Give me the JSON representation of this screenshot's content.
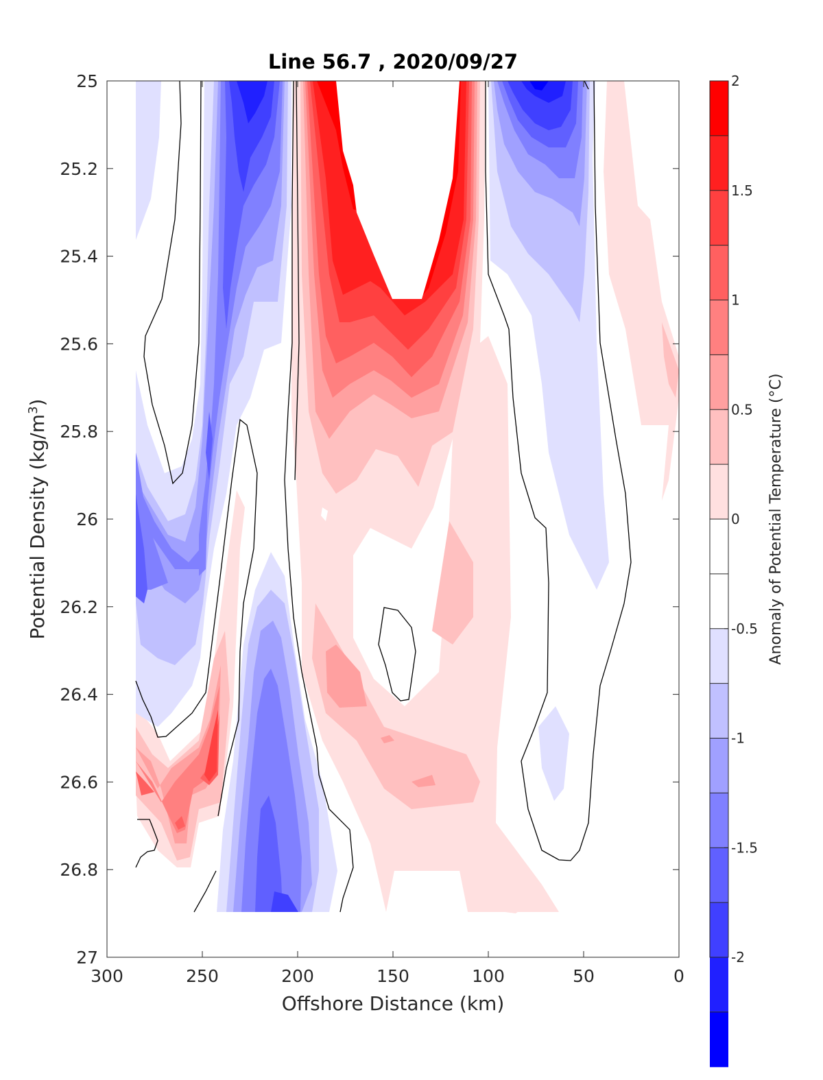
{
  "chart_data": {
    "type": "heatmap",
    "title": "Line 56.7 , 2020/09/27",
    "xlabel": "Offshore Distance (km)",
    "ylabel_main": "Potential Density (kg/m",
    "ylabel_sup": "3",
    "ylabel_end": ")",
    "xlim": [
      300,
      0
    ],
    "ylim": [
      27,
      25
    ],
    "x_reversed": true,
    "y_reversed": true,
    "xticks": [
      300,
      250,
      200,
      150,
      100,
      50,
      0
    ],
    "xtick_labels": [
      "300",
      "250",
      "200",
      "150",
      "100",
      "50",
      "0"
    ],
    "yticks": [
      25,
      25.2,
      25.4,
      25.6,
      25.8,
      26,
      26.2,
      26.4,
      26.6,
      26.8,
      27
    ],
    "ytick_labels": [
      "25",
      "25.2",
      "25.4",
      "25.6",
      "25.8",
      "26",
      "26.2",
      "26.4",
      "26.6",
      "26.8",
      "27"
    ],
    "grid": false,
    "data_extent": {
      "x": [
        285,
        0
      ],
      "y": [
        25,
        26.9
      ]
    },
    "zero_contour_color": "#000000",
    "colorbar": {
      "label": "Anomaly of Potential Temperature (°C)",
      "range": [
        -2,
        2
      ],
      "step": 0.25,
      "ticks": [
        2,
        1.5,
        1,
        0.5,
        0,
        -0.5,
        -1,
        -1.5,
        -2
      ],
      "tick_labels": [
        "2",
        "1.5",
        "1",
        "0.5",
        "0",
        "-0.5",
        "-1",
        "-1.5",
        "-2"
      ],
      "colors_top_to_bottom": [
        "#ff0000",
        "#ff2020",
        "#ff4040",
        "#ff6060",
        "#ff8080",
        "#ffa0a0",
        "#ffc0c0",
        "#ffe0e0",
        "#ffffff",
        "#ffffff",
        "#e0e0ff",
        "#c0c0ff",
        "#a0a0ff",
        "#8080ff",
        "#6060ff",
        "#4040ff",
        "#2020ff",
        "#0000ff"
      ]
    },
    "anomaly_features": [
      {
        "feature": "warm core",
        "x_range_km": [
          110,
          190
        ],
        "y_range": [
          25,
          25.5
        ],
        "value": ">2"
      },
      {
        "feature": "warm core flank",
        "x_range_km": [
          110,
          195
        ],
        "y_range": [
          25.5,
          26
        ],
        "value": 1.5
      },
      {
        "feature": "cold core nearshore",
        "x_range_km": [
          55,
          100
        ],
        "y_range": [
          25,
          25.6
        ],
        "value": -1.75
      },
      {
        "feature": "cold core offshore",
        "x_range_km": [
          205,
          245
        ],
        "y_range": [
          25,
          25.7
        ],
        "value": -1.5
      },
      {
        "feature": "cold band deep offshore",
        "x_range_km": [
          190,
          235
        ],
        "y_range": [
          26.1,
          26.9
        ],
        "value": -1.25
      },
      {
        "feature": "warm patch deep offshore",
        "x_range_km": [
          240,
          285
        ],
        "y_range": [
          26.4,
          26.8
        ],
        "value": 1.25
      },
      {
        "feature": "warm patch mid",
        "x_range_km": [
          120,
          200
        ],
        "y_range": [
          26.2,
          26.7
        ],
        "value": 0.75
      },
      {
        "feature": "weak cold deep nearshore",
        "x_range_km": [
          60,
          75
        ],
        "y_range": [
          26.4,
          26.7
        ],
        "value": -0.25
      }
    ]
  }
}
